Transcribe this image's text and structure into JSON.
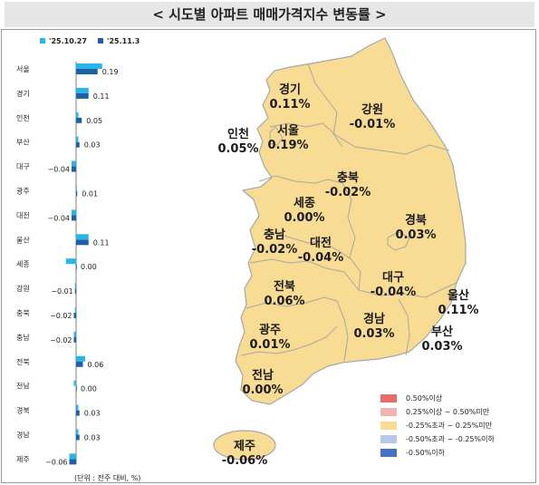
{
  "header": {
    "title": "< 시도별 아파트 매매가격지수 변동률 >"
  },
  "chart_data": {
    "type": "bar",
    "orientation": "horizontal",
    "categories": [
      "서울",
      "경기",
      "인천",
      "부산",
      "대구",
      "광주",
      "대전",
      "울산",
      "세종",
      "강원",
      "충북",
      "충남",
      "전북",
      "전남",
      "경북",
      "경남",
      "제주"
    ],
    "series": [
      {
        "name": "'25.10.27",
        "color": "#29b5e8",
        "values": [
          0.23,
          0.11,
          0.02,
          0.02,
          -0.04,
          0.0,
          -0.04,
          0.11,
          -0.09,
          -0.01,
          -0.01,
          -0.02,
          0.08,
          -0.02,
          0.02,
          0.02,
          -0.06
        ]
      },
      {
        "name": "'25.11.3",
        "color": "#1f5fa8",
        "values": [
          0.19,
          0.11,
          0.05,
          0.03,
          -0.04,
          0.01,
          -0.04,
          0.11,
          0.0,
          -0.01,
          -0.02,
          -0.02,
          0.06,
          0.0,
          0.03,
          0.03,
          -0.06
        ]
      }
    ],
    "value_labels": [
      "0.19",
      "0.11",
      "0.05",
      "0.03",
      "−0.04",
      "0.01",
      "−0.04",
      "0.11",
      "0.00",
      "−0.01",
      "−0.02",
      "−0.02",
      "0.06",
      "0.00",
      "0.03",
      "0.03",
      "−0.06"
    ],
    "unit_note": "(단위 : 전주 대비, %)"
  },
  "map": {
    "regions": [
      {
        "name": "경기",
        "value": "0.11%"
      },
      {
        "name": "강원",
        "value": "-0.01%"
      },
      {
        "name": "인천",
        "value": "0.05%"
      },
      {
        "name": "서울",
        "value": "0.19%"
      },
      {
        "name": "충북",
        "value": "-0.02%"
      },
      {
        "name": "세종",
        "value": "0.00%"
      },
      {
        "name": "경북",
        "value": "0.03%"
      },
      {
        "name": "충남",
        "value": "-0.02%"
      },
      {
        "name": "대전",
        "value": "-0.04%"
      },
      {
        "name": "전북",
        "value": "0.06%"
      },
      {
        "name": "대구",
        "value": "-0.04%"
      },
      {
        "name": "울산",
        "value": "0.11%"
      },
      {
        "name": "광주",
        "value": "0.01%"
      },
      {
        "name": "경남",
        "value": "0.03%"
      },
      {
        "name": "부산",
        "value": "0.03%"
      },
      {
        "name": "전남",
        "value": "0.00%"
      },
      {
        "name": "제주",
        "value": "-0.06%"
      }
    ],
    "fill_color": "#f9dc93"
  },
  "legend": [
    {
      "label": "0.50%이상",
      "color": "#e86b6b"
    },
    {
      "label": "0.25%이상 ~ 0.50%미만",
      "color": "#f2b4b0"
    },
    {
      "label": "-0.25%초과 ~ 0.25%미만",
      "color": "#f9dc93"
    },
    {
      "label": "-0.50%초과 ~ -0.25%이하",
      "color": "#b7c9e6"
    },
    {
      "label": "-0.50%이하",
      "color": "#4472c4"
    }
  ]
}
